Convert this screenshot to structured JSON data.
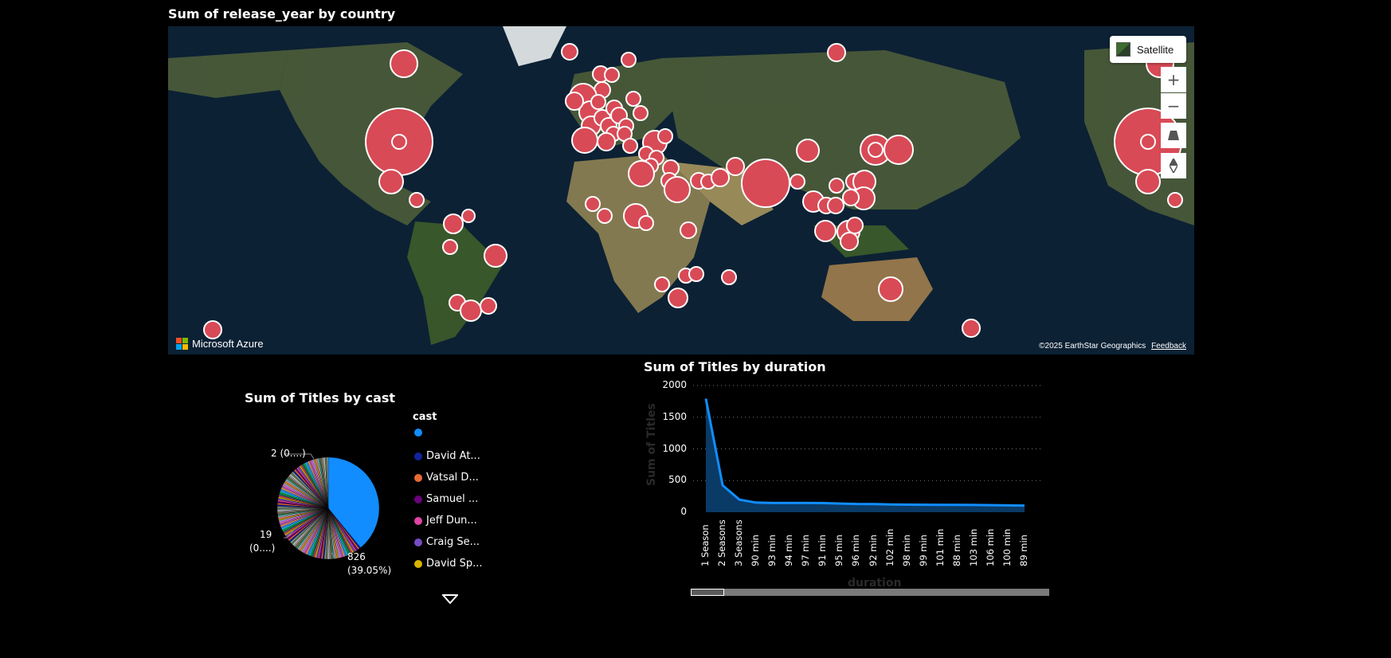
{
  "map": {
    "title": "Sum of release_year by country",
    "satellite_label": "Satellite",
    "zoom_in_label": "+",
    "zoom_out_label": "−",
    "branding": "Microsoft Azure",
    "copyright": "©2025 EarthStar Geographics",
    "feedback": "Feedback",
    "colors": {
      "bubble": "#d84a56",
      "bubble_stroke": "#ffffff",
      "ocean": "#0c2134"
    }
  },
  "pie": {
    "title": "Sum of Titles by cast",
    "label_large": "826",
    "label_large_pct": "(39.05%)",
    "label_19": "19",
    "label_19_pct": "(0....)",
    "label_2": "2 (0....)"
  },
  "legend": {
    "title": "cast",
    "items": [
      {
        "label": "",
        "color": "#118dff"
      },
      {
        "label": "David At...",
        "color": "#12239e"
      },
      {
        "label": "Vatsal D...",
        "color": "#e66c37"
      },
      {
        "label": "Samuel ...",
        "color": "#6b007b"
      },
      {
        "label": "Jeff Dun...",
        "color": "#e044a7"
      },
      {
        "label": "Craig Se...",
        "color": "#744ec2"
      },
      {
        "label": "David Sp...",
        "color": "#d9b300"
      }
    ]
  },
  "chart_data": {
    "type": "area",
    "title": "Sum of Titles by duration",
    "xlabel": "duration",
    "ylabel": "Sum of Titles",
    "ylim": [
      0,
      2000
    ],
    "yticks": [
      "2000",
      "1500",
      "1000",
      "500",
      "0"
    ],
    "categories": [
      "1 Season",
      "2 Seasons",
      "3 Seasons",
      "90 min",
      "93 min",
      "94 min",
      "97 min",
      "91 min",
      "95 min",
      "96 min",
      "92 min",
      "102 min",
      "98 min",
      "99 min",
      "101 min",
      "88 min",
      "103 min",
      "106 min",
      "100 min",
      "89 min"
    ],
    "values": [
      1793,
      425,
      199,
      152,
      146,
      146,
      146,
      144,
      137,
      130,
      129,
      122,
      120,
      118,
      116,
      116,
      114,
      111,
      108,
      106
    ],
    "grid": true,
    "color": "#118dff"
  }
}
